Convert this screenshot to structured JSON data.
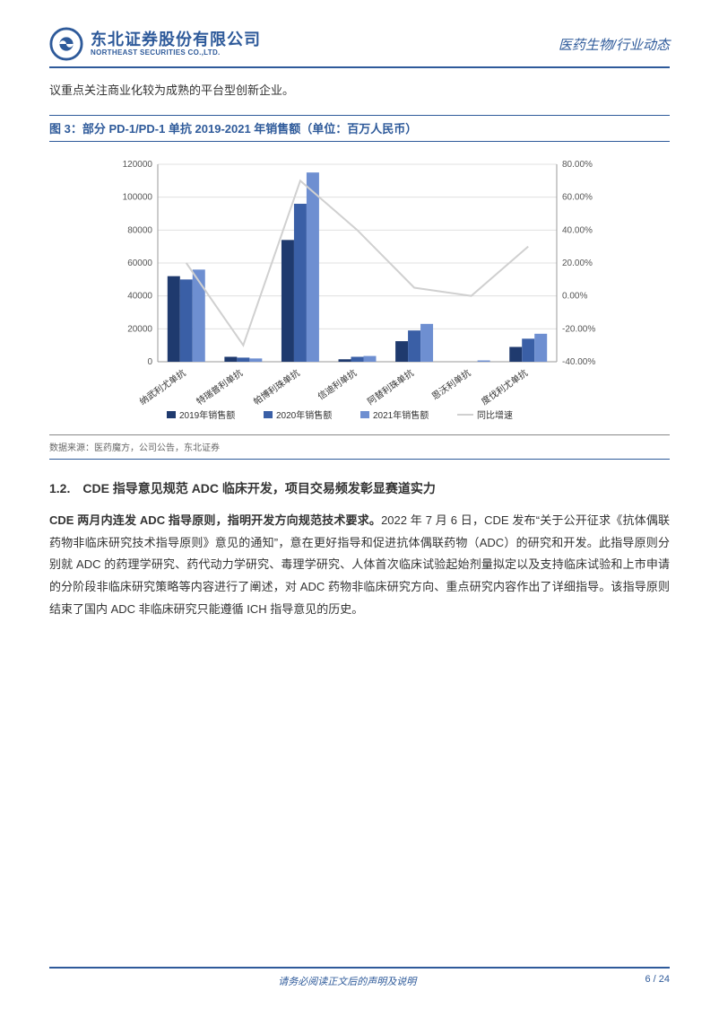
{
  "header": {
    "logo_cn": "东北证券股份有限公司",
    "logo_en": "NORTHEAST SECURITIES CO.,LTD.",
    "right_label": "医药生物/行业动态"
  },
  "lead_text": "议重点关注商业化较为成熟的平台型创新企业。",
  "figure": {
    "title": "图 3：部分 PD-1/PD-1 单抗 2019-2021 年销售额（单位：百万人民币）",
    "source": "数据来源：医药魔方，公司公告，东北证券",
    "chart": {
      "type": "bar+line",
      "categories": [
        "纳武利尤单抗",
        "特瑞普利单抗",
        "帕博利珠单抗",
        "信迪利单抗",
        "阿替利珠单抗",
        "恩沃利单抗",
        "度伐利尤单抗"
      ],
      "series": [
        {
          "name": "2019年销售额",
          "color": "#1f3a6e",
          "values": [
            52000,
            3000,
            74000,
            1500,
            12500,
            null,
            9000
          ]
        },
        {
          "name": "2020年销售额",
          "color": "#3a5fa6",
          "values": [
            50000,
            2500,
            96000,
            3000,
            19000,
            null,
            14000
          ]
        },
        {
          "name": "2021年销售额",
          "color": "#6e8fd1",
          "values": [
            56000,
            2000,
            115000,
            3500,
            23000,
            800,
            17000
          ]
        }
      ],
      "line_series": {
        "name": "同比增速",
        "color": "#d0d0d0",
        "values": [
          20,
          -30,
          70,
          40,
          5,
          0,
          30
        ]
      },
      "y_left": {
        "min": 0,
        "max": 120000,
        "step": 20000,
        "label_fontsize": 10
      },
      "y_right": {
        "min": -40,
        "max": 80,
        "step": 20,
        "fmt": "%",
        "label_fontsize": 10
      },
      "bar_width": 0.22,
      "bar_group_gap": 0.34,
      "grid_color": "#e0e0e0",
      "axis_color": "#999999",
      "bg_color": "#ffffff",
      "xlabel_fontsize": 10,
      "xlabel_rotate": -35,
      "legend_fontsize": 10
    }
  },
  "section": {
    "heading": "1.2.　CDE 指导意见规范 ADC 临床开发，项目交易频发彰显赛道实力",
    "bold_run": "CDE 两月内连发 ADC 指导原则，指明开发方向规范技术要求。",
    "body": "2022 年 7 月 6 日，CDE 发布“关于公开征求《抗体偶联药物非临床研究技术指导原则》意见的通知”，意在更好指导和促进抗体偶联药物（ADC）的研究和开发。此指导原则分别就 ADC 的药理学研究、药代动力学研究、毒理学研究、人体首次临床试验起始剂量拟定以及支持临床试验和上市申请的分阶段非临床研究策略等内容进行了阐述，对 ADC 药物非临床研究方向、重点研究内容作出了详细指导。该指导原则结束了国内 ADC 非临床研究只能遵循 ICH 指导意见的历史。"
  },
  "footer": {
    "center": "请务必阅读正文后的声明及说明",
    "right": "6  /  24"
  }
}
